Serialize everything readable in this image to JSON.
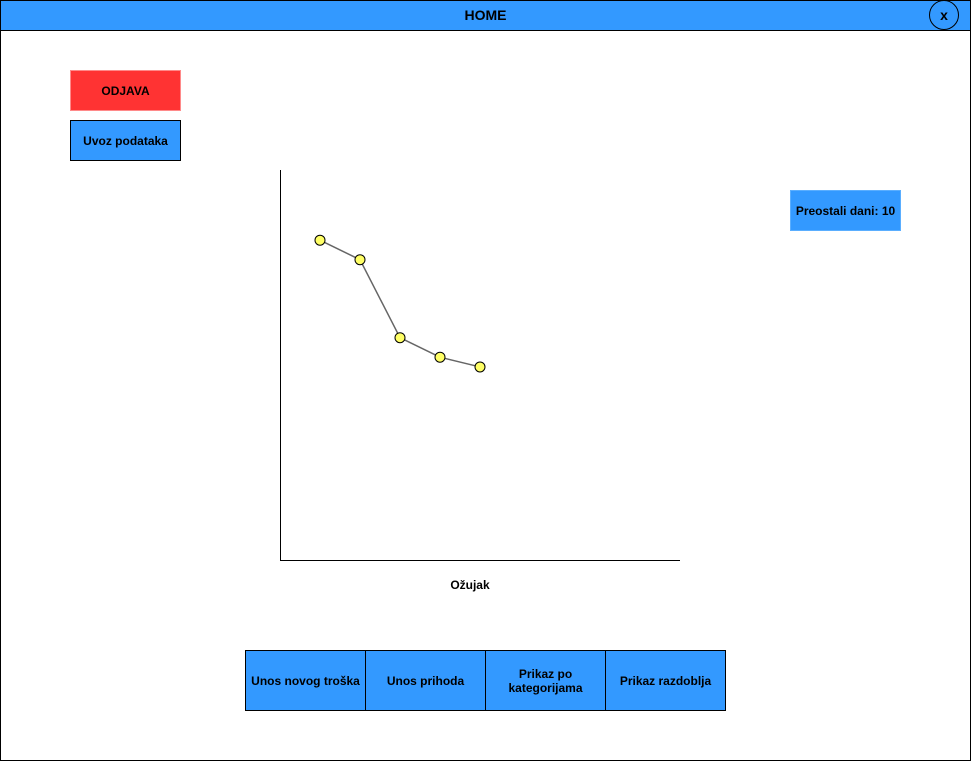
{
  "window": {
    "title": "HOME",
    "close_label": "x"
  },
  "sidebar": {
    "logout_label": "ODJAVA",
    "import_label": "Uvoz podataka"
  },
  "status": {
    "days_left": "Preostali dani: 10"
  },
  "chart_data": {
    "type": "line",
    "title": "",
    "xlabel": "Ožujak",
    "ylabel": "",
    "x": [
      1,
      2,
      3,
      4,
      5
    ],
    "values": [
      8.2,
      7.7,
      5.7,
      5.2,
      4.95
    ],
    "xlim": [
      0,
      10
    ],
    "ylim": [
      0,
      10
    ],
    "grid": false,
    "colors": {
      "line": "#666666",
      "marker": "#ffff66",
      "marker_stroke": "#000000"
    }
  },
  "bottom_nav": {
    "items": [
      {
        "label": "Unos novog troška"
      },
      {
        "label": "Unos prihoda"
      },
      {
        "label": "Prikaz po kategorijama"
      },
      {
        "label": "Prikaz razdoblja"
      }
    ]
  },
  "colors": {
    "primary": "#3399ff",
    "danger": "#ff3333"
  }
}
